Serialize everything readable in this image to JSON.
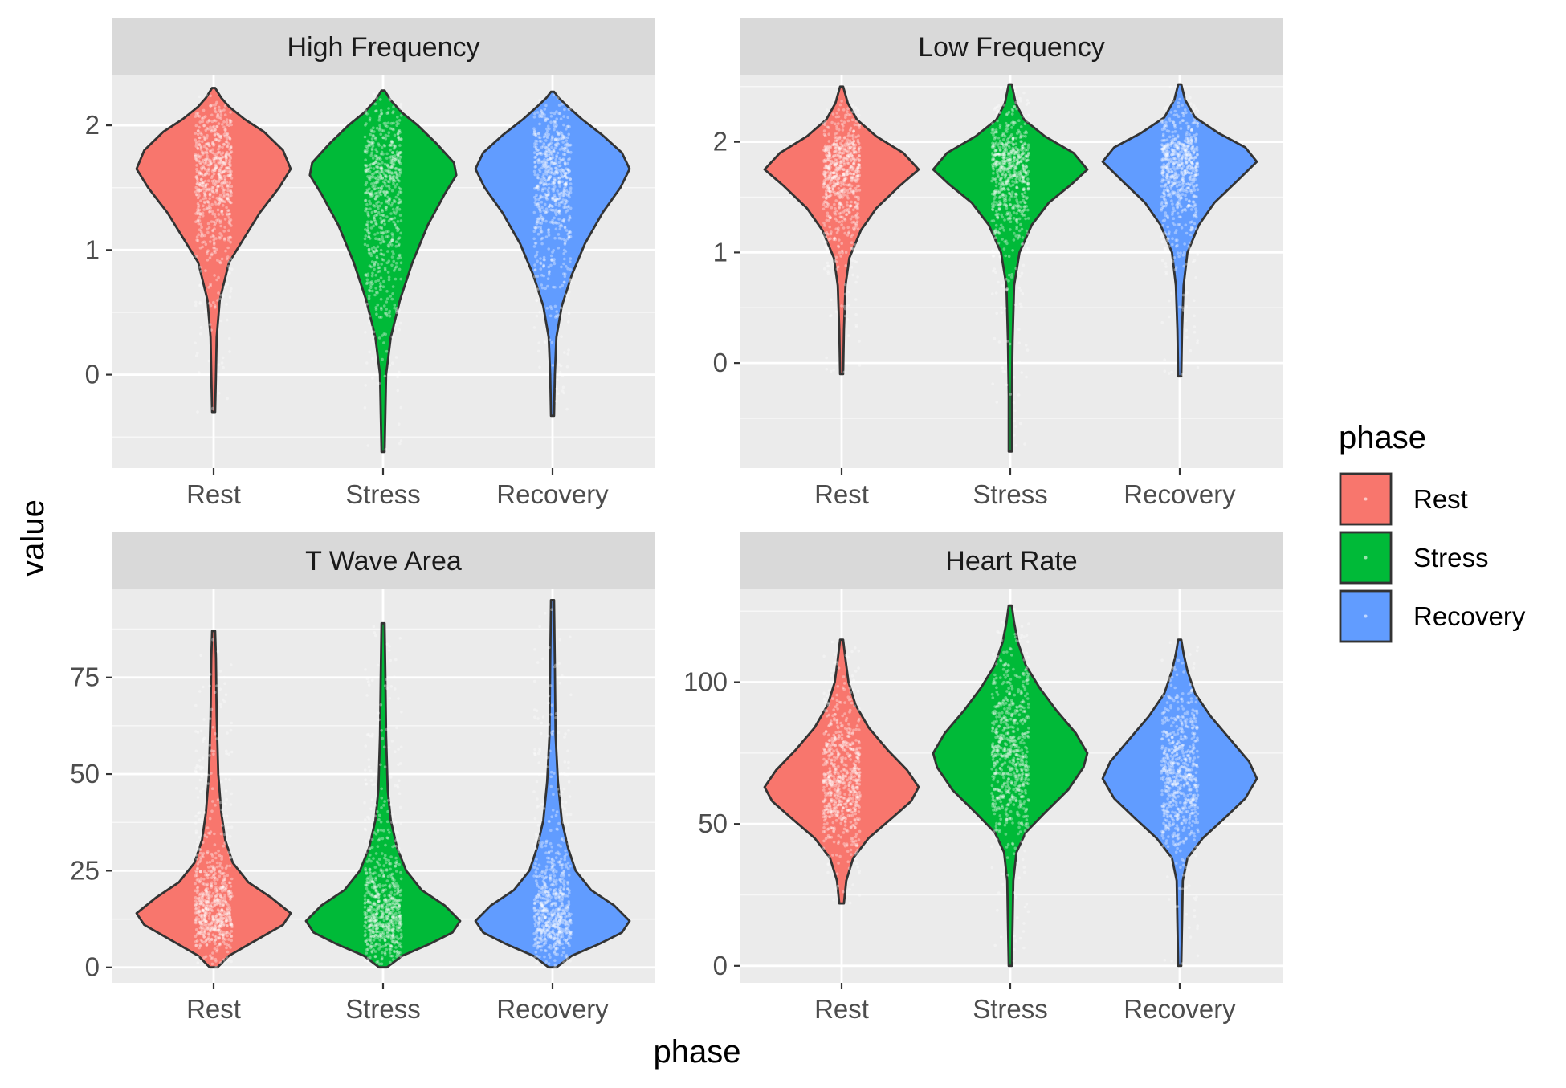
{
  "chart_data": {
    "type": "violin",
    "xlabel": "phase",
    "ylabel": "value",
    "categories": [
      "Rest",
      "Stress",
      "Recovery"
    ],
    "legend": {
      "title": "phase",
      "position": "right",
      "entries": [
        {
          "label": "Rest",
          "color": "#F8766D"
        },
        {
          "label": "Stress",
          "color": "#00BA38"
        },
        {
          "label": "Recovery",
          "color": "#619CFF"
        }
      ]
    },
    "grid": true,
    "panels": [
      {
        "title": "High Frequency",
        "ylim": [
          -0.75,
          2.4
        ],
        "yticks": [
          0,
          1,
          2
        ],
        "ytick_labels": [
          "0",
          "1",
          "2"
        ],
        "violins": [
          {
            "phase": "Rest",
            "min": -0.3,
            "max": 2.3,
            "profile": [
              [
                -0.3,
                0.02
              ],
              [
                0,
                0.03
              ],
              [
                0.3,
                0.04
              ],
              [
                0.6,
                0.08
              ],
              [
                0.9,
                0.2
              ],
              [
                1.1,
                0.4
              ],
              [
                1.3,
                0.6
              ],
              [
                1.5,
                0.85
              ],
              [
                1.65,
                1.0
              ],
              [
                1.8,
                0.9
              ],
              [
                1.95,
                0.65
              ],
              [
                2.05,
                0.4
              ],
              [
                2.15,
                0.2
              ],
              [
                2.22,
                0.1
              ],
              [
                2.3,
                0.02
              ]
            ]
          },
          {
            "phase": "Stress",
            "min": -0.62,
            "max": 2.28,
            "profile": [
              [
                -0.62,
                0.02
              ],
              [
                -0.3,
                0.03
              ],
              [
                0,
                0.04
              ],
              [
                0.3,
                0.1
              ],
              [
                0.6,
                0.22
              ],
              [
                0.9,
                0.38
              ],
              [
                1.2,
                0.58
              ],
              [
                1.45,
                0.8
              ],
              [
                1.6,
                0.95
              ],
              [
                1.7,
                0.92
              ],
              [
                1.85,
                0.7
              ],
              [
                2.0,
                0.45
              ],
              [
                2.1,
                0.25
              ],
              [
                2.2,
                0.1
              ],
              [
                2.28,
                0.02
              ]
            ]
          },
          {
            "phase": "Recovery",
            "min": -0.33,
            "max": 2.27,
            "profile": [
              [
                -0.33,
                0.02
              ],
              [
                0,
                0.03
              ],
              [
                0.3,
                0.05
              ],
              [
                0.55,
                0.12
              ],
              [
                0.8,
                0.25
              ],
              [
                1.05,
                0.42
              ],
              [
                1.3,
                0.65
              ],
              [
                1.5,
                0.88
              ],
              [
                1.65,
                1.0
              ],
              [
                1.78,
                0.9
              ],
              [
                1.92,
                0.65
              ],
              [
                2.05,
                0.38
              ],
              [
                2.15,
                0.2
              ],
              [
                2.22,
                0.08
              ],
              [
                2.27,
                0.02
              ]
            ]
          }
        ]
      },
      {
        "title": "Low Frequency",
        "ylim": [
          -0.95,
          2.6
        ],
        "yticks": [
          0,
          1,
          2
        ],
        "ytick_labels": [
          "0",
          "1",
          "2"
        ],
        "violins": [
          {
            "phase": "Rest",
            "min": -0.1,
            "max": 2.5,
            "profile": [
              [
                -0.1,
                0.02
              ],
              [
                0.3,
                0.03
              ],
              [
                0.7,
                0.05
              ],
              [
                0.95,
                0.1
              ],
              [
                1.2,
                0.25
              ],
              [
                1.4,
                0.45
              ],
              [
                1.6,
                0.75
              ],
              [
                1.75,
                1.0
              ],
              [
                1.9,
                0.8
              ],
              [
                2.05,
                0.45
              ],
              [
                2.2,
                0.2
              ],
              [
                2.35,
                0.08
              ],
              [
                2.5,
                0.02
              ]
            ]
          },
          {
            "phase": "Stress",
            "min": -0.8,
            "max": 2.52,
            "profile": [
              [
                -0.8,
                0.02
              ],
              [
                -0.3,
                0.02
              ],
              [
                0.2,
                0.03
              ],
              [
                0.7,
                0.05
              ],
              [
                1.0,
                0.12
              ],
              [
                1.25,
                0.28
              ],
              [
                1.45,
                0.5
              ],
              [
                1.62,
                0.8
              ],
              [
                1.75,
                1.0
              ],
              [
                1.9,
                0.82
              ],
              [
                2.05,
                0.45
              ],
              [
                2.2,
                0.18
              ],
              [
                2.35,
                0.07
              ],
              [
                2.52,
                0.02
              ]
            ]
          },
          {
            "phase": "Recovery",
            "min": -0.12,
            "max": 2.52,
            "profile": [
              [
                -0.12,
                0.02
              ],
              [
                0.3,
                0.03
              ],
              [
                0.7,
                0.05
              ],
              [
                1.0,
                0.1
              ],
              [
                1.25,
                0.25
              ],
              [
                1.45,
                0.45
              ],
              [
                1.65,
                0.75
              ],
              [
                1.82,
                1.0
              ],
              [
                1.95,
                0.85
              ],
              [
                2.08,
                0.5
              ],
              [
                2.22,
                0.2
              ],
              [
                2.38,
                0.07
              ],
              [
                2.52,
                0.02
              ]
            ]
          }
        ]
      },
      {
        "title": "T Wave Area",
        "ylim": [
          -4,
          98
        ],
        "yticks": [
          0,
          25,
          50,
          75
        ],
        "ytick_labels": [
          "0",
          "25",
          "50",
          "75"
        ],
        "violins": [
          {
            "phase": "Rest",
            "min": 0,
            "max": 87,
            "profile": [
              [
                0,
                0.05
              ],
              [
                3,
                0.2
              ],
              [
                7,
                0.55
              ],
              [
                11,
                0.9
              ],
              [
                14,
                1.0
              ],
              [
                18,
                0.75
              ],
              [
                22,
                0.45
              ],
              [
                27,
                0.25
              ],
              [
                33,
                0.15
              ],
              [
                40,
                0.1
              ],
              [
                50,
                0.06
              ],
              [
                65,
                0.04
              ],
              [
                80,
                0.03
              ],
              [
                87,
                0.02
              ]
            ]
          },
          {
            "phase": "Stress",
            "min": 0,
            "max": 89,
            "profile": [
              [
                0,
                0.05
              ],
              [
                3,
                0.25
              ],
              [
                6,
                0.6
              ],
              [
                9,
                0.9
              ],
              [
                12,
                1.0
              ],
              [
                16,
                0.8
              ],
              [
                20,
                0.5
              ],
              [
                25,
                0.3
              ],
              [
                31,
                0.18
              ],
              [
                38,
                0.1
              ],
              [
                46,
                0.06
              ],
              [
                60,
                0.04
              ],
              [
                75,
                0.03
              ],
              [
                89,
                0.02
              ]
            ]
          },
          {
            "phase": "Recovery",
            "min": 0,
            "max": 95,
            "profile": [
              [
                0,
                0.05
              ],
              [
                3,
                0.25
              ],
              [
                6,
                0.6
              ],
              [
                9,
                0.9
              ],
              [
                12,
                1.0
              ],
              [
                16,
                0.8
              ],
              [
                20,
                0.5
              ],
              [
                25,
                0.3
              ],
              [
                31,
                0.2
              ],
              [
                38,
                0.12
              ],
              [
                48,
                0.07
              ],
              [
                60,
                0.04
              ],
              [
                78,
                0.03
              ],
              [
                95,
                0.02
              ]
            ]
          }
        ]
      },
      {
        "title": "Heart Rate",
        "ylim": [
          -6,
          133
        ],
        "yticks": [
          0,
          50,
          100
        ],
        "ytick_labels": [
          "0",
          "50",
          "100"
        ],
        "violins": [
          {
            "phase": "Rest",
            "min": 22,
            "max": 115,
            "profile": [
              [
                22,
                0.03
              ],
              [
                30,
                0.06
              ],
              [
                38,
                0.15
              ],
              [
                45,
                0.35
              ],
              [
                52,
                0.65
              ],
              [
                58,
                0.9
              ],
              [
                63,
                1.0
              ],
              [
                69,
                0.85
              ],
              [
                76,
                0.6
              ],
              [
                84,
                0.35
              ],
              [
                92,
                0.18
              ],
              [
                100,
                0.09
              ],
              [
                108,
                0.05
              ],
              [
                115,
                0.02
              ]
            ]
          },
          {
            "phase": "Stress",
            "min": 0,
            "max": 127,
            "profile": [
              [
                0,
                0.02
              ],
              [
                15,
                0.03
              ],
              [
                30,
                0.04
              ],
              [
                40,
                0.08
              ],
              [
                47,
                0.2
              ],
              [
                54,
                0.45
              ],
              [
                62,
                0.75
              ],
              [
                70,
                0.95
              ],
              [
                75,
                1.0
              ],
              [
                82,
                0.85
              ],
              [
                90,
                0.6
              ],
              [
                98,
                0.38
              ],
              [
                106,
                0.2
              ],
              [
                114,
                0.1
              ],
              [
                121,
                0.05
              ],
              [
                127,
                0.02
              ]
            ]
          },
          {
            "phase": "Recovery",
            "min": 0,
            "max": 115,
            "profile": [
              [
                0,
                0.02
              ],
              [
                15,
                0.03
              ],
              [
                30,
                0.04
              ],
              [
                38,
                0.1
              ],
              [
                45,
                0.3
              ],
              [
                52,
                0.58
              ],
              [
                59,
                0.85
              ],
              [
                66,
                1.0
              ],
              [
                72,
                0.9
              ],
              [
                80,
                0.65
              ],
              [
                88,
                0.4
              ],
              [
                96,
                0.2
              ],
              [
                104,
                0.1
              ],
              [
                110,
                0.05
              ],
              [
                115,
                0.02
              ]
            ]
          }
        ]
      }
    ]
  }
}
